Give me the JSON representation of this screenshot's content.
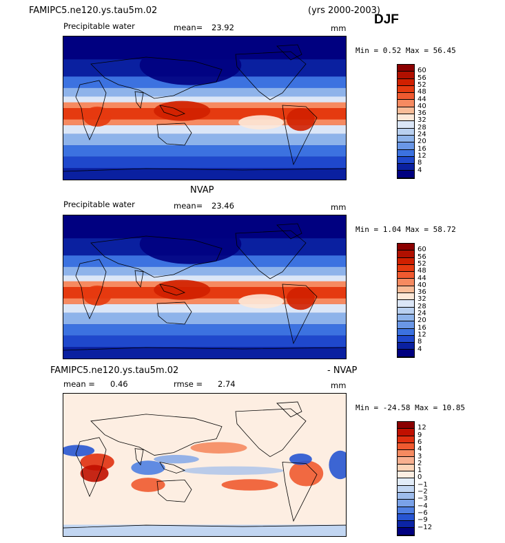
{
  "header": {
    "case_name": "FAMIPC5.ne120.ys.tau5m.02",
    "years": "(yrs 2000-2003)",
    "season": "DJF"
  },
  "chart_data": [
    {
      "type": "heatmap",
      "panel": "model",
      "title": "",
      "variable": "Precipitable water",
      "stat1_label": "mean=",
      "stat1_value": "23.92",
      "stat2_label": "",
      "stat2_value": "",
      "units": "mm",
      "min_max_text": "Min =    0.52 Max =  56.45",
      "min": 0.52,
      "max": 56.45,
      "colorbar_levels": [
        "60",
        "56",
        "52",
        "48",
        "44",
        "40",
        "36",
        "32",
        "28",
        "24",
        "20",
        "16",
        "12",
        "8",
        "4"
      ],
      "colorbar_colors": [
        "#8b0000",
        "#b01000",
        "#d02000",
        "#e53a10",
        "#f05a30",
        "#f68a60",
        "#f8bc98",
        "#fde8d8",
        "#dbe6f7",
        "#b9d0f0",
        "#8eb3ea",
        "#6a97e6",
        "#3c72e0",
        "#1f48cc",
        "#0a20a0",
        "#000080"
      ],
      "xlim": [
        -180,
        180
      ],
      "ylim": [
        -90,
        90
      ]
    },
    {
      "type": "heatmap",
      "panel": "observations",
      "title": "NVAP",
      "variable": "Precipitable water",
      "stat1_label": "mean=",
      "stat1_value": "23.46",
      "stat2_label": "",
      "stat2_value": "",
      "units": "mm",
      "min_max_text": "Min =    1.04 Max =  58.72",
      "min": 1.04,
      "max": 58.72,
      "colorbar_levels": [
        "60",
        "56",
        "52",
        "48",
        "44",
        "40",
        "36",
        "32",
        "28",
        "24",
        "20",
        "16",
        "12",
        "8",
        "4"
      ],
      "colorbar_colors": [
        "#8b0000",
        "#b01000",
        "#d02000",
        "#e53a10",
        "#f05a30",
        "#f68a60",
        "#f8bc98",
        "#fde8d8",
        "#dbe6f7",
        "#b9d0f0",
        "#8eb3ea",
        "#6a97e6",
        "#3c72e0",
        "#1f48cc",
        "#0a20a0",
        "#000080"
      ],
      "xlim": [
        -180,
        180
      ],
      "ylim": [
        -90,
        90
      ]
    },
    {
      "type": "heatmap",
      "panel": "difference",
      "title_left": "FAMIPC5.ne120.ys.tau5m.02",
      "title_right": "- NVAP",
      "variable": "",
      "stat1_label": "mean =",
      "stat1_value": "0.46",
      "stat2_label": "rmse =",
      "stat2_value": "2.74",
      "units": "mm",
      "min_max_text": "Min = -24.58 Max =  10.85",
      "min": -24.58,
      "max": 10.85,
      "colorbar_levels": [
        "12",
        "9",
        "6",
        "4",
        "3",
        "2",
        "1",
        "0",
        "−1",
        "−2",
        "−3",
        "−4",
        "−6",
        "−9",
        "−12"
      ],
      "colorbar_colors": [
        "#8b0000",
        "#c01000",
        "#e03010",
        "#f05a30",
        "#f58a60",
        "#f8b090",
        "#fcd4b8",
        "#fdeee2",
        "#e2ecf8",
        "#c2d6f2",
        "#9dbcec",
        "#7aa2e8",
        "#4f7fe2",
        "#2755d2",
        "#0b24a6",
        "#000080"
      ],
      "xlim": [
        -180,
        180
      ],
      "ylim": [
        -90,
        90
      ]
    }
  ]
}
